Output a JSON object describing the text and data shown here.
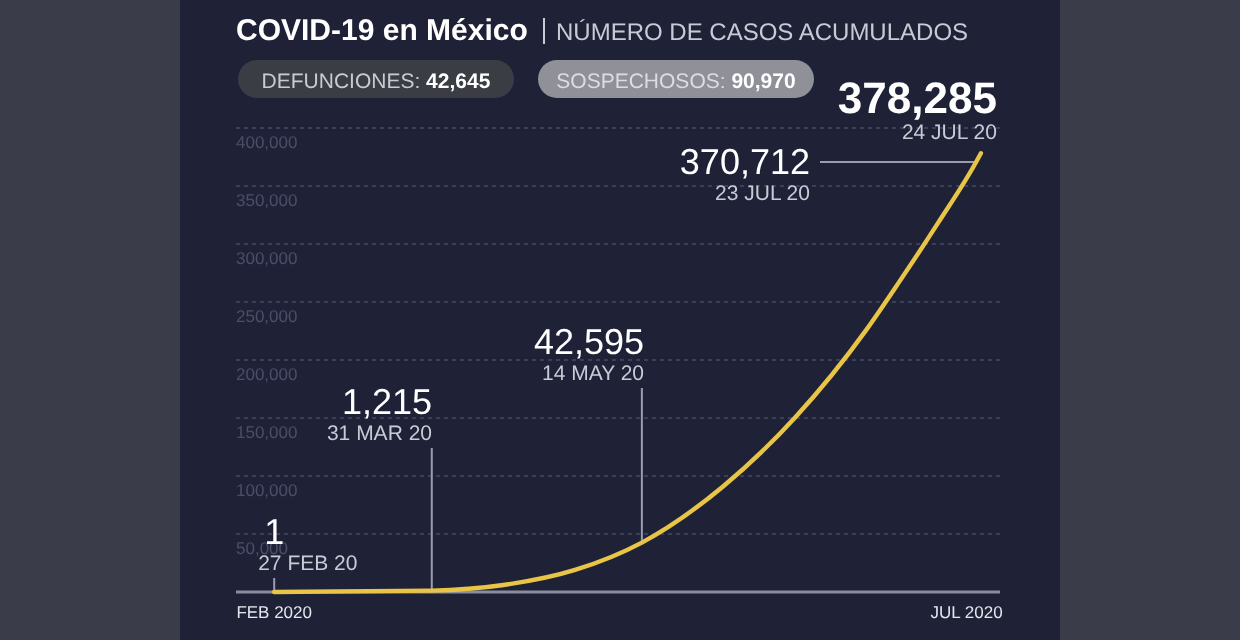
{
  "chart_data": {
    "type": "line",
    "title": "COVID-19 en México",
    "subtitle": "NÚMERO DE CASOS ACUMULADOS",
    "x": [
      "2020-02-27",
      "2020-03-31",
      "2020-04-15",
      "2020-04-30",
      "2020-05-14",
      "2020-05-31",
      "2020-06-15",
      "2020-06-30",
      "2020-07-07",
      "2020-07-15",
      "2020-07-23",
      "2020-07-24"
    ],
    "series": [
      {
        "color": "#e8c547",
        "values": [
          1,
          1215,
          6000,
          19000,
          42595,
          91000,
          150000,
          226000,
          268000,
          318000,
          370712,
          378285
        ],
        "value_labels": [
          "1",
          "1,215",
          null,
          null,
          "42,595",
          null,
          null,
          null,
          null,
          null,
          "370,712",
          "378,285"
        ]
      }
    ],
    "xlim": [
      "2020-02-19",
      "2020-07-28"
    ],
    "xticks": [
      {
        "value": "2020-02-27",
        "label": "FEB 2020"
      },
      {
        "value": "2020-07-21",
        "label": "JUL 2020"
      }
    ],
    "ylim": [
      0,
      400000
    ],
    "yticks": [
      {
        "value": 50000,
        "label": "50,000"
      },
      {
        "value": 100000,
        "label": "100,000"
      },
      {
        "value": 150000,
        "label": "150,000"
      },
      {
        "value": 200000,
        "label": "200,000"
      },
      {
        "value": 250000,
        "label": "250,000"
      },
      {
        "value": 300000,
        "label": "300,000"
      },
      {
        "value": 350000,
        "label": "350,000"
      },
      {
        "value": 400000,
        "label": "400,000"
      }
    ],
    "grid": "y",
    "marker": "none",
    "line_style": "solid",
    "annotations": [
      "DEFUNCIONES: 42,645",
      "SOSPECHOSOS: 90,970",
      {
        "text": "27 FEB 20",
        "x": "2020-02-27",
        "y": 1
      },
      {
        "text": "31 MAR 20",
        "x": "2020-03-31",
        "y": 1215
      },
      {
        "text": "14 MAY 20",
        "x": "2020-05-14",
        "y": 42595
      },
      {
        "text": "23 JUL 20",
        "x": "2020-07-23",
        "y": 370712
      },
      {
        "text": "24 JUL 20",
        "x": "2020-07-24",
        "y": 378285
      }
    ]
  }
}
